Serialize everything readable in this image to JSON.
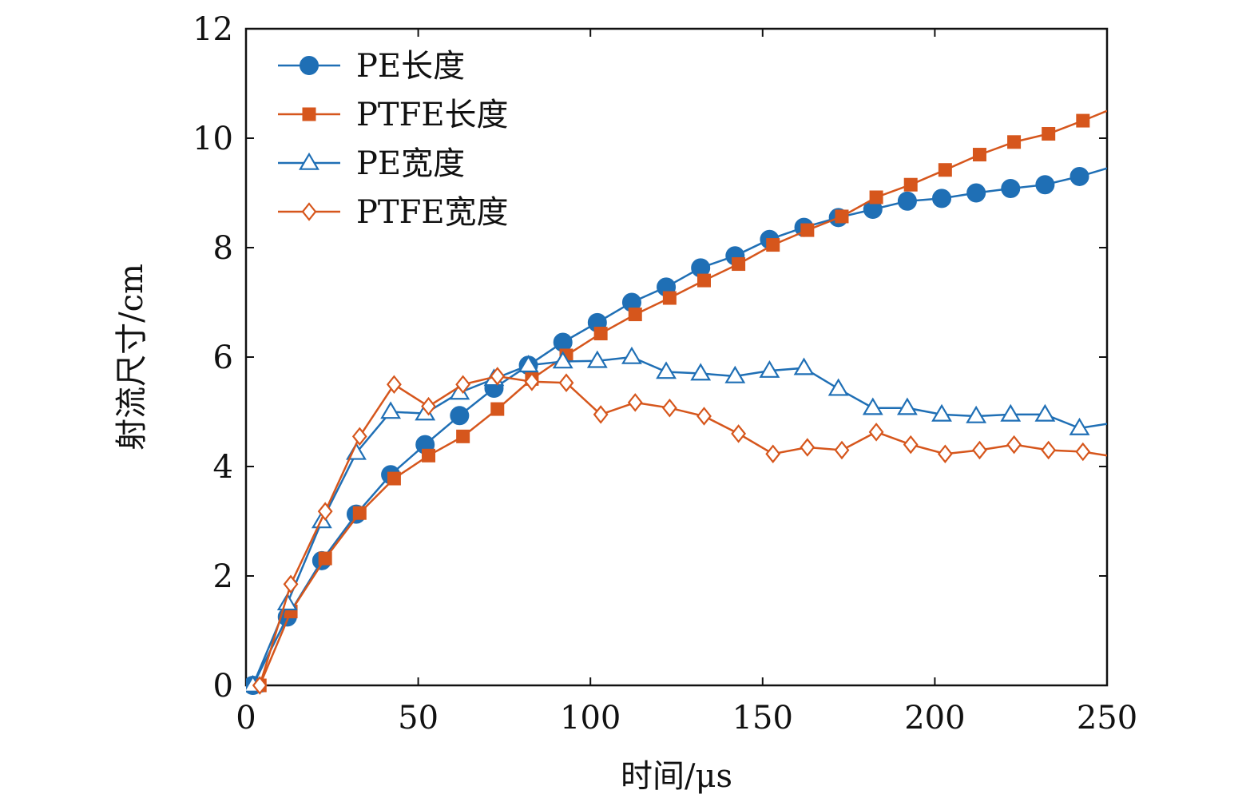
{
  "chart_data": {
    "type": "line",
    "xlabel": "时间/μs",
    "ylabel": "射流尺寸/cm",
    "xlim": [
      0,
      250
    ],
    "ylim": [
      0,
      12
    ],
    "xticks": [
      0,
      50,
      100,
      150,
      200,
      250
    ],
    "yticks": [
      0,
      2,
      4,
      6,
      8,
      10,
      12
    ],
    "grid": false,
    "legend_position": "top-left",
    "series": [
      {
        "name": "PE长度",
        "color": "#1f6fb5",
        "marker": "circle-filled",
        "x": [
          2,
          12,
          22,
          32,
          42,
          52,
          62,
          72,
          82,
          92,
          102,
          112,
          122,
          132,
          142,
          152,
          162,
          172,
          182,
          192,
          202,
          212,
          222,
          232,
          242,
          250
        ],
        "y": [
          0.0,
          1.25,
          2.28,
          3.13,
          3.85,
          4.4,
          4.93,
          5.43,
          5.85,
          6.27,
          6.63,
          7.0,
          7.28,
          7.63,
          7.85,
          8.15,
          8.37,
          8.55,
          8.7,
          8.85,
          8.9,
          9.0,
          9.08,
          9.15,
          9.3,
          9.45
        ]
      },
      {
        "name": "PTFE长度",
        "color": "#d6561c",
        "marker": "square-filled",
        "x": [
          4,
          13,
          23,
          33,
          43,
          53,
          63,
          73,
          83,
          93,
          103,
          113,
          123,
          133,
          143,
          153,
          163,
          173,
          183,
          193,
          203,
          213,
          223,
          233,
          243,
          250
        ],
        "y": [
          0.0,
          1.35,
          2.32,
          3.15,
          3.78,
          4.2,
          4.55,
          5.05,
          5.6,
          6.03,
          6.43,
          6.78,
          7.08,
          7.4,
          7.7,
          8.05,
          8.32,
          8.57,
          8.92,
          9.15,
          9.42,
          9.7,
          9.93,
          10.08,
          10.32,
          10.5
        ]
      },
      {
        "name": "PE宽度",
        "color": "#1f6fb5",
        "marker": "triangle-open",
        "x": [
          2,
          12,
          22,
          32,
          42,
          52,
          62,
          72,
          82,
          92,
          102,
          112,
          122,
          132,
          142,
          152,
          162,
          172,
          182,
          192,
          202,
          212,
          222,
          232,
          242,
          250
        ],
        "y": [
          0.0,
          1.5,
          3.0,
          4.25,
          5.0,
          4.97,
          5.35,
          5.6,
          5.85,
          5.92,
          5.93,
          6.0,
          5.73,
          5.7,
          5.65,
          5.75,
          5.8,
          5.42,
          5.07,
          5.07,
          4.95,
          4.92,
          4.95,
          4.95,
          4.7,
          4.78
        ]
      },
      {
        "name": "PTFE宽度",
        "color": "#d6561c",
        "marker": "diamond-open",
        "x": [
          4,
          13,
          23,
          33,
          43,
          53,
          63,
          73,
          83,
          93,
          103,
          113,
          123,
          133,
          143,
          153,
          163,
          173,
          183,
          193,
          203,
          213,
          223,
          233,
          243,
          250
        ],
        "y": [
          0.0,
          1.85,
          3.18,
          4.55,
          5.5,
          5.1,
          5.5,
          5.65,
          5.55,
          5.53,
          4.95,
          5.17,
          5.07,
          4.92,
          4.6,
          4.23,
          4.35,
          4.3,
          4.63,
          4.4,
          4.23,
          4.3,
          4.4,
          4.3,
          4.27,
          4.2
        ]
      }
    ]
  }
}
